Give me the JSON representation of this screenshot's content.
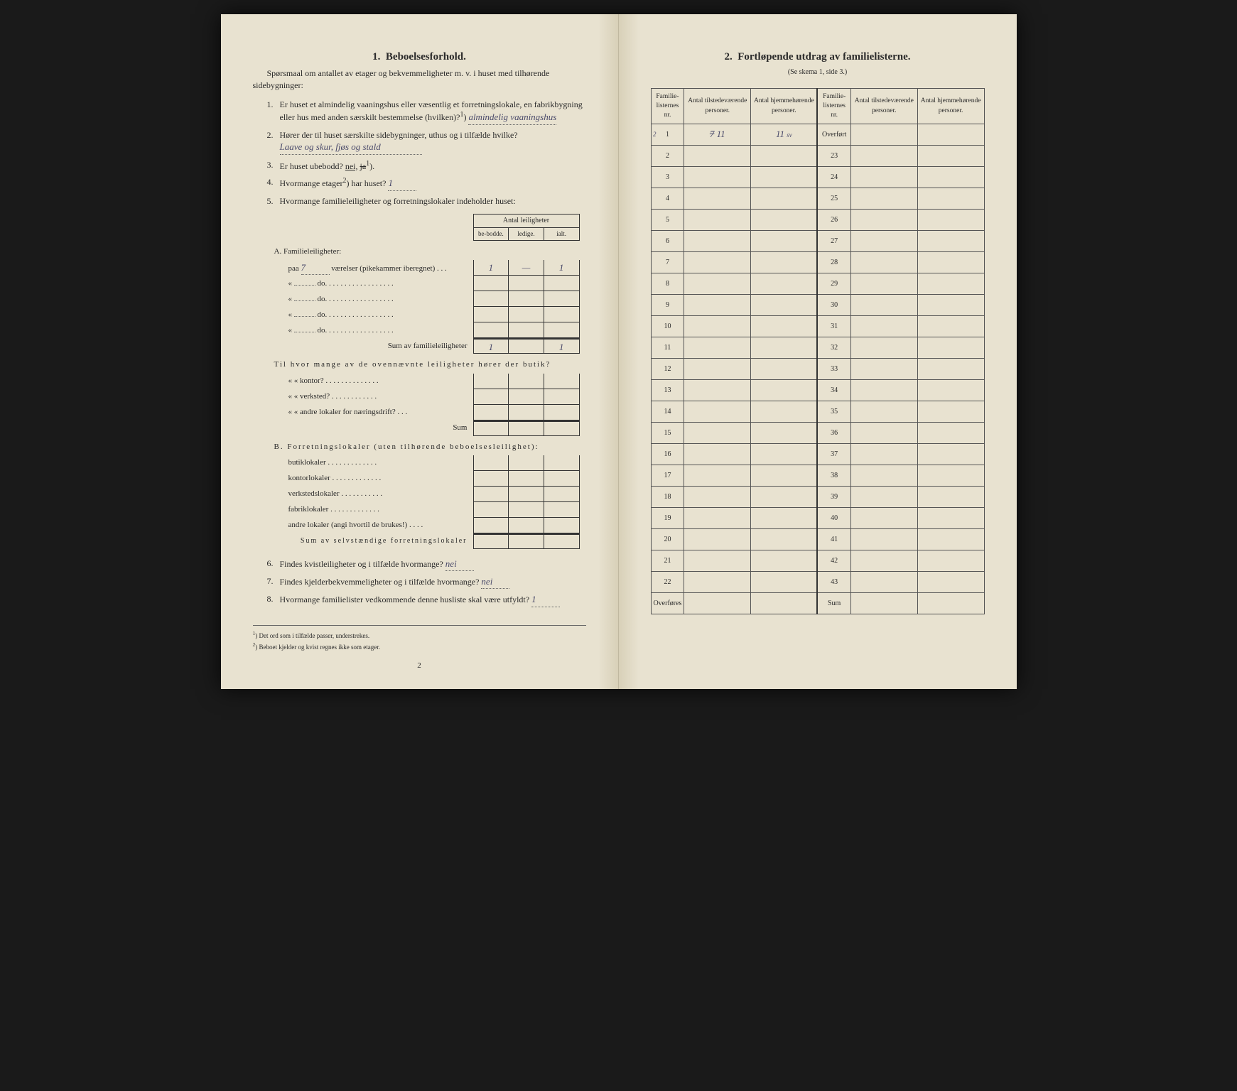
{
  "left_page": {
    "section_number": "1.",
    "section_title": "Beboelsesforhold.",
    "intro": "Spørsmaal om antallet av etager og bekvemmeligheter m. v. i huset med tilhørende sidebygninger:",
    "q1": {
      "num": "1.",
      "text_a": "Er huset et almindelig vaaningshus eller væsentlig et forretningslokale, en fabrikbygning eller hus med anden særskilt bestemmelse (hvilken)?",
      "sup": "1",
      "answer": "almindelig vaaningshus"
    },
    "q2": {
      "num": "2.",
      "text": "Hører der til huset særskilte sidebygninger, uthus og i tilfælde hvilke?",
      "answer": "Laave og skur, fjøs og stald"
    },
    "q3": {
      "num": "3.",
      "text": "Er huset ubebodd?",
      "answer_nei": "nei,",
      "answer_ja": "ja",
      "sup": "1"
    },
    "q4": {
      "num": "4.",
      "text": "Hvormange etager",
      "sup": "2",
      "text_b": ") har huset?",
      "answer": "1"
    },
    "q5": {
      "num": "5.",
      "text": "Hvormange familieleiligheter og forretningslokaler indeholder huset:"
    },
    "leilighet_header": {
      "title": "Antal leiligheter",
      "col1": "be-bodde.",
      "col2": "ledige.",
      "col3": "ialt."
    },
    "section_a": {
      "title": "A. Familieleiligheter:",
      "row1_prefix": "paa",
      "row1_value": "7",
      "row1_text": "værelser (pikekammer iberegnet) . . .",
      "row1_c1": "1",
      "row1_c2": "—",
      "row1_c3": "1",
      "do_label": "do.",
      "dots": " . . . . . . . . . . . . . . . . .",
      "sum_label": "Sum av familieleiligheter",
      "sum_c1": "1",
      "sum_c3": "1"
    },
    "butik_section": {
      "intro": "Til hvor mange av de ovennævnte leiligheter hører der butik?",
      "kontor": "kontor?",
      "verksted": "verksted?",
      "andre": "andre lokaler for næringsdrift?",
      "sum": "Sum"
    },
    "section_b": {
      "title": "B. Forretningslokaler (uten tilhørende beboelsesleilighet):",
      "butik": "butiklokaler",
      "kontor": "kontorlokaler",
      "verksted": "verkstedslokaler",
      "fabrik": "fabriklokaler",
      "andre": "andre lokaler (angi hvortil de brukes!)",
      "sum": "Sum av selvstændige forretningslokaler"
    },
    "q6": {
      "num": "6.",
      "text": "Findes kvistleiligheter og i tilfælde hvormange?",
      "answer": "nei"
    },
    "q7": {
      "num": "7.",
      "text": "Findes kjelderbekvemmeligheter og i tilfælde hvormange?",
      "answer": "nei"
    },
    "q8": {
      "num": "8.",
      "text": "Hvormange familielister vedkommende denne husliste skal være utfyldt?",
      "answer": "1"
    },
    "footnote1_sup": "1",
    "footnote1": ") Det ord som i tilfælde passer, understrekes.",
    "footnote2_sup": "2",
    "footnote2": ") Beboet kjelder og kvist regnes ikke som etager.",
    "page_number": "2"
  },
  "right_page": {
    "section_number": "2.",
    "section_title": "Fortløpende utdrag av familielisterne.",
    "subtitle": "(Se skema 1, side 3.)",
    "headers": {
      "h1": "Familie-listernes nr.",
      "h2": "Antal tilstedeværende personer.",
      "h3": "Antal hjemmehørende personer.",
      "h4": "Familie-listernes nr.",
      "h5": "Antal tilstedeværende personer.",
      "h6": "Antal hjemmehørende personer."
    },
    "row1": {
      "nr": "1",
      "margin": "2",
      "tilstede_struck": "7",
      "tilstede": "11",
      "hjemme": "11",
      "hjemme_note": "sv"
    },
    "overfort_label": "Overført",
    "left_nrs": [
      "2",
      "3",
      "4",
      "5",
      "6",
      "7",
      "8",
      "9",
      "10",
      "11",
      "12",
      "13",
      "14",
      "15",
      "16",
      "17",
      "18",
      "19",
      "20",
      "21",
      "22"
    ],
    "right_nrs": [
      "23",
      "24",
      "25",
      "26",
      "27",
      "28",
      "29",
      "30",
      "31",
      "32",
      "33",
      "34",
      "35",
      "36",
      "37",
      "38",
      "39",
      "40",
      "41",
      "42",
      "43"
    ],
    "overfores_label": "Overføres",
    "sum_label": "Sum"
  }
}
